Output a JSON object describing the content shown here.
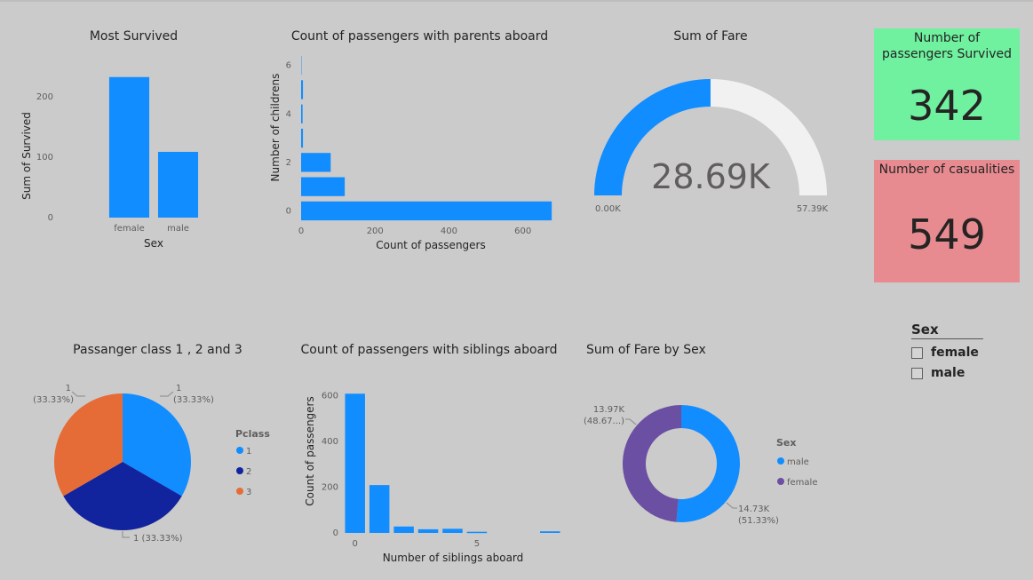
{
  "colors": {
    "background": "#cbcbcb",
    "blue": "#118dff",
    "navy": "#12239e",
    "orange": "#e66c37",
    "purple": "#6b4fa2",
    "gauge_empty": "#f1f1f1",
    "card_green": "#6ff1a0",
    "card_red": "#e88b91"
  },
  "cards": {
    "survived": {
      "title": "Number of passengers Survived",
      "value": "342"
    },
    "casualties": {
      "title": "Number of casualities",
      "value": "549"
    }
  },
  "slicer": {
    "title": "Sex",
    "items": [
      {
        "label": "female",
        "checked": false
      },
      {
        "label": "male",
        "checked": false
      }
    ]
  },
  "chart_data": [
    {
      "id": "most_survived",
      "type": "bar",
      "title": "Most Survived",
      "xlabel": "Sex",
      "ylabel": "Sum of Survived",
      "categories": [
        "female",
        "male"
      ],
      "values": [
        233,
        109
      ],
      "ylim": [
        0,
        240
      ],
      "yticks": [
        0,
        100,
        200
      ],
      "grid": false
    },
    {
      "id": "parents_aboard",
      "type": "bar",
      "orientation": "horizontal",
      "title": "Count of passengers with parents aboard",
      "xlabel": "Count of passengers",
      "ylabel": "Number of childrens",
      "categories": [
        0,
        1,
        2,
        3,
        4,
        5,
        6
      ],
      "values": [
        678,
        118,
        80,
        5,
        4,
        5,
        1
      ],
      "xlim": [
        0,
        680
      ],
      "xticks": [
        0,
        200,
        400,
        600
      ],
      "yticks": [
        0,
        2,
        4,
        6
      ],
      "grid": false
    },
    {
      "id": "sum_of_fare",
      "type": "gauge",
      "title": "Sum of Fare",
      "value": 28.69,
      "min": 0,
      "max": 57.39,
      "value_label": "28.69K",
      "min_label": "0.00K",
      "max_label": "57.39K"
    },
    {
      "id": "pclass",
      "type": "pie",
      "title": "Passanger class 1 , 2 and 3",
      "legend_title": "Pclass",
      "legend_position": "right",
      "slices": [
        {
          "name": "1",
          "value": 1,
          "label": "1",
          "pct": "(33.33%)"
        },
        {
          "name": "2",
          "value": 1,
          "label": "1 (33.33%)"
        },
        {
          "name": "3",
          "value": 1,
          "label": "1",
          "pct": "(33.33%)"
        }
      ]
    },
    {
      "id": "siblings_aboard",
      "type": "bar",
      "title": "Count of passengers with siblings aboard",
      "xlabel": "Number of siblings aboard",
      "ylabel": "Count of passengers",
      "x": [
        0,
        1,
        2,
        3,
        4,
        5,
        8
      ],
      "values": [
        608,
        209,
        28,
        16,
        18,
        5,
        7
      ],
      "xlim": [
        -0.5,
        8.5
      ],
      "xticks": [
        0,
        5
      ],
      "ylim": [
        0,
        640
      ],
      "yticks": [
        0,
        200,
        400,
        600
      ],
      "grid": false
    },
    {
      "id": "fare_by_sex",
      "type": "pie",
      "variant": "donut",
      "title": "Sum of Fare by Sex",
      "legend_title": "Sex",
      "legend_position": "right",
      "slices": [
        {
          "name": "male",
          "value": 14.73,
          "label": "14.73K",
          "pct": "(51.33%)"
        },
        {
          "name": "female",
          "value": 13.97,
          "label": "13.97K",
          "pct": "(48.67...)"
        }
      ]
    }
  ]
}
